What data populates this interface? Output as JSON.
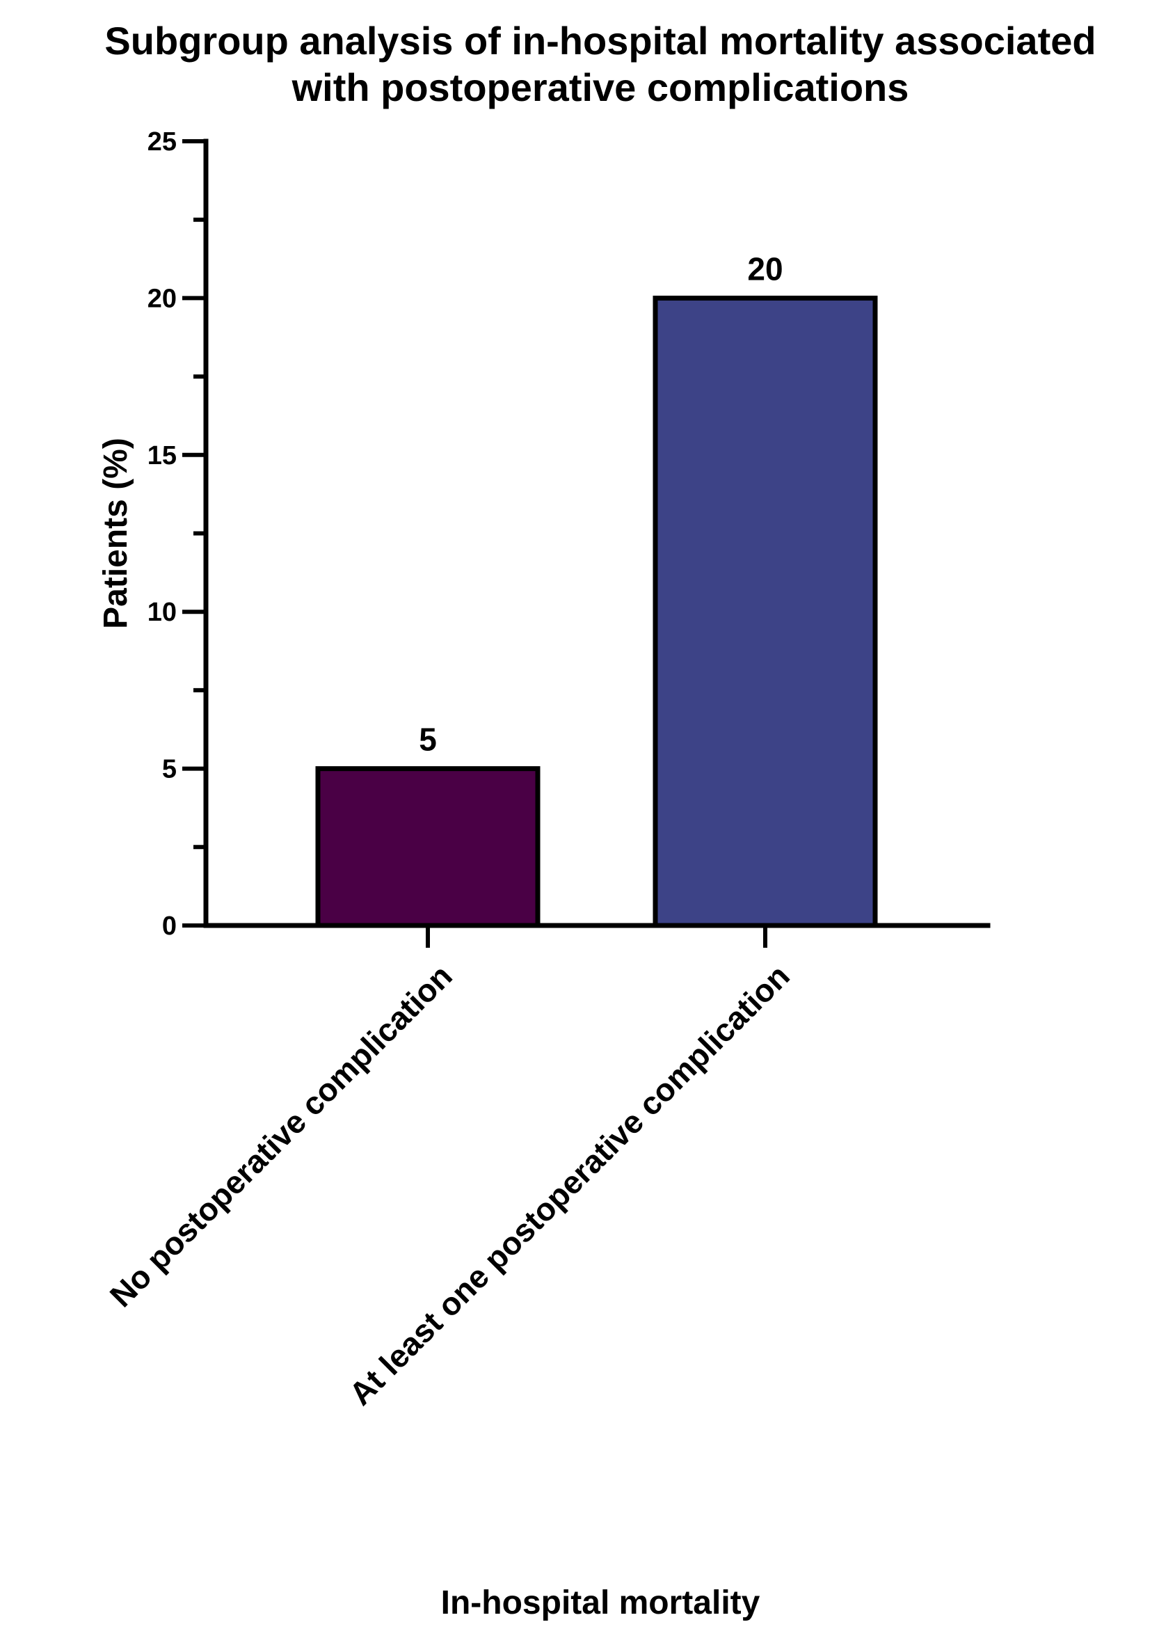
{
  "chart_data": {
    "type": "bar",
    "title": "Subgroup analysis of in-hospital mortality associated with postoperative complications",
    "title_lines": [
      "Subgroup analysis of in-hospital mortality associated",
      "with postoperative complications"
    ],
    "xlabel": "In-hospital mortality",
    "ylabel": "Patients (%)",
    "categories": [
      "No postoperative complication",
      "At least one postoperative complication"
    ],
    "values": [
      5,
      20
    ],
    "data_labels": [
      "5",
      "20"
    ],
    "bar_colors": [
      "#4a0045",
      "#3d4387"
    ],
    "ylim": [
      0,
      25
    ],
    "y_major_ticks": [
      0,
      5,
      10,
      15,
      20,
      25
    ],
    "y_minor_ticks": [
      2.5,
      7.5,
      12.5,
      17.5,
      22.5
    ],
    "grid": false,
    "legend": "none"
  }
}
